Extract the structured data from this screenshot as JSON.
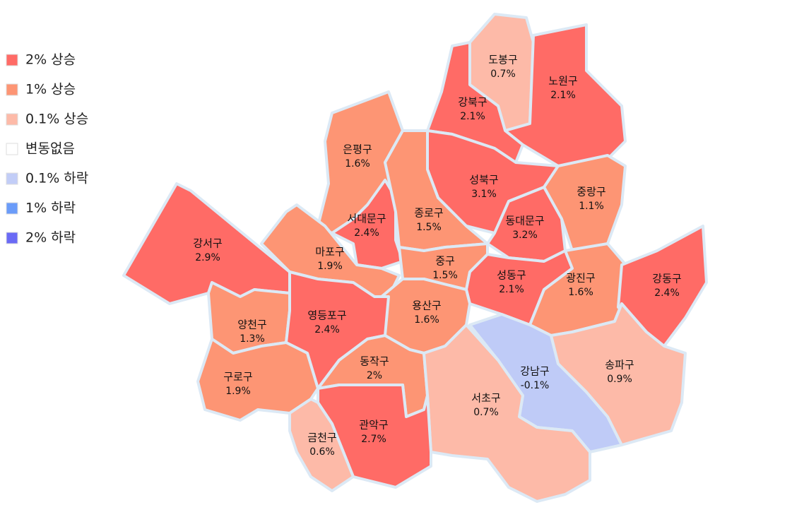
{
  "legend": [
    {
      "label": "2% 상승",
      "color": "#ff6b66"
    },
    {
      "label": "1% 상승",
      "color": "#fd9574"
    },
    {
      "label": "0.1% 상승",
      "color": "#fdbaa8"
    },
    {
      "label": "변동없음",
      "color": "#ffffff"
    },
    {
      "label": "0.1% 하락",
      "color": "#c2cdf7"
    },
    {
      "label": "1% 하락",
      "color": "#6b9cf9"
    },
    {
      "label": "2% 하락",
      "color": "#6a6af5"
    }
  ],
  "districts": [
    {
      "name": "도봉구",
      "value": "0.7%",
      "color": "#fdbaa8"
    },
    {
      "name": "노원구",
      "value": "2.1%",
      "color": "#ff6b66"
    },
    {
      "name": "강북구",
      "value": "2.1%",
      "color": "#ff6b66"
    },
    {
      "name": "은평구",
      "value": "1.6%",
      "color": "#fd9574"
    },
    {
      "name": "성북구",
      "value": "3.1%",
      "color": "#ff6b66"
    },
    {
      "name": "중랑구",
      "value": "1.1%",
      "color": "#fd9574"
    },
    {
      "name": "서대문구",
      "value": "2.4%",
      "color": "#ff6b66"
    },
    {
      "name": "종로구",
      "value": "1.5%",
      "color": "#fd9574"
    },
    {
      "name": "동대문구",
      "value": "3.2%",
      "color": "#ff6b66"
    },
    {
      "name": "강서구",
      "value": "2.9%",
      "color": "#ff6b66"
    },
    {
      "name": "마포구",
      "value": "1.9%",
      "color": "#fd9574"
    },
    {
      "name": "중구",
      "value": "1.5%",
      "color": "#fd9574"
    },
    {
      "name": "성동구",
      "value": "2.1%",
      "color": "#ff6b66"
    },
    {
      "name": "광진구",
      "value": "1.6%",
      "color": "#fd9574"
    },
    {
      "name": "강동구",
      "value": "2.4%",
      "color": "#ff6b66"
    },
    {
      "name": "용산구",
      "value": "1.6%",
      "color": "#fd9574"
    },
    {
      "name": "양천구",
      "value": "1.3%",
      "color": "#fd9574"
    },
    {
      "name": "영등포구",
      "value": "2.4%",
      "color": "#ff6b66"
    },
    {
      "name": "강남구",
      "value": "-0.1%",
      "color": "#bfcbf7"
    },
    {
      "name": "송파구",
      "value": "0.9%",
      "color": "#fdbaa8"
    },
    {
      "name": "동작구",
      "value": "2%",
      "color": "#fd9574"
    },
    {
      "name": "구로구",
      "value": "1.9%",
      "color": "#fd9574"
    },
    {
      "name": "서초구",
      "value": "0.7%",
      "color": "#fdbaa8"
    },
    {
      "name": "관악구",
      "value": "2.7%",
      "color": "#ff6b66"
    },
    {
      "name": "금천구",
      "value": "0.6%",
      "color": "#fdbaa8"
    }
  ]
}
